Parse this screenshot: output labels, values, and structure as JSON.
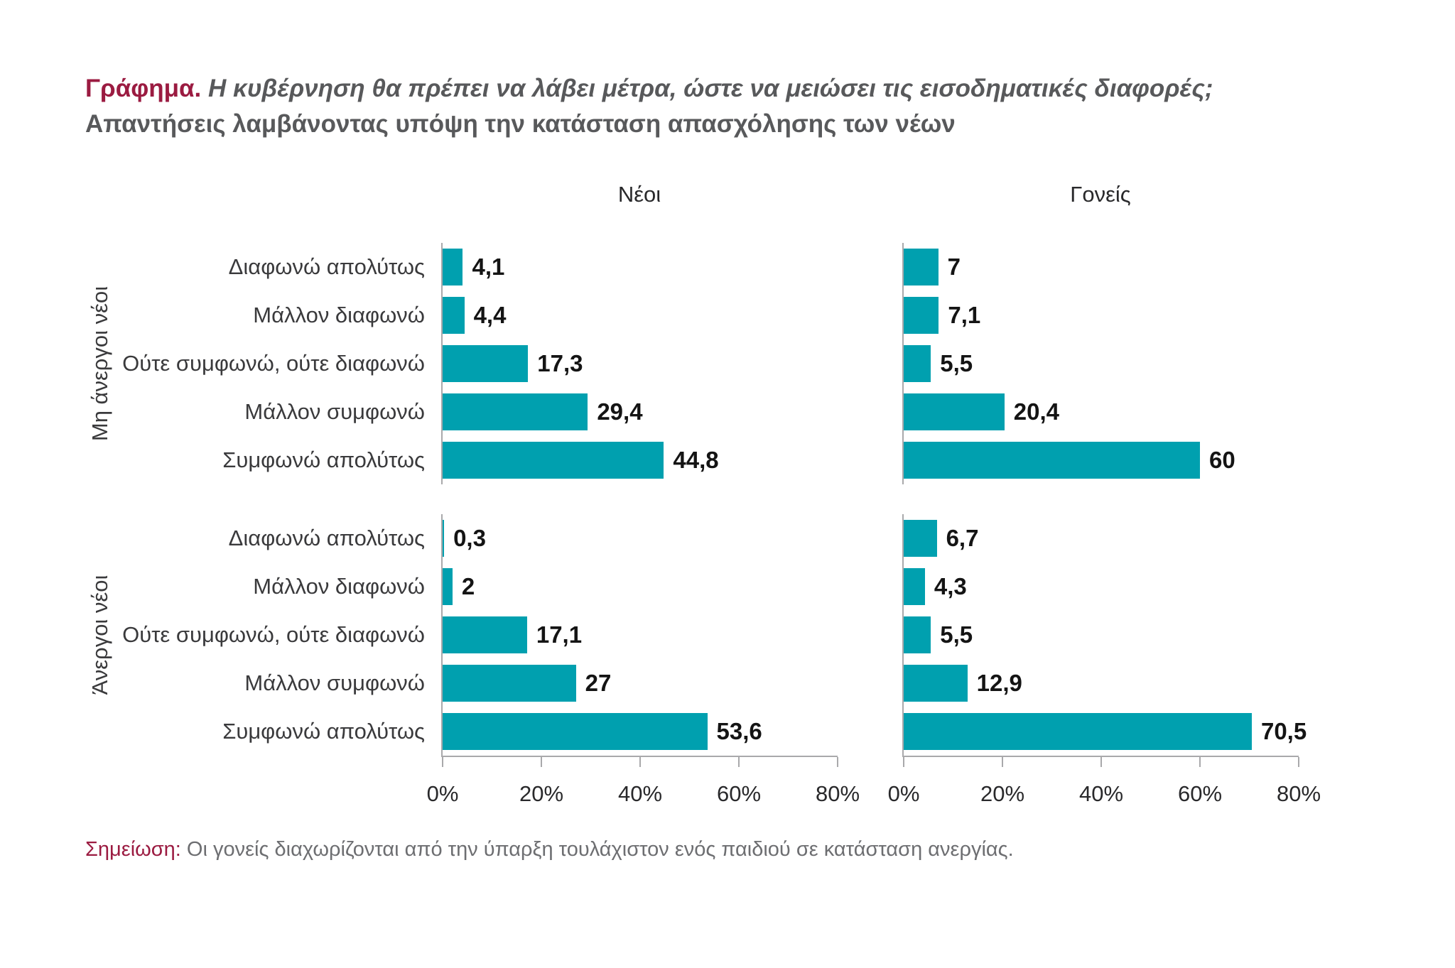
{
  "title": {
    "prefix": "Γράφημα.",
    "line1": " Η κυβέρνηση θα πρέπει να λάβει μέτρα, ώστε να μειώσει τις εισοδηματικές διαφορές;",
    "line2": "Απαντήσεις λαμβάνοντας υπόψη την κατάσταση απασχόλησης των νέων"
  },
  "note": {
    "prefix": "Σημείωση:",
    "text": " Οι γονείς διαχωρίζονται από την ύπαρξη τουλάχιστον ενός παιδιού σε κατάσταση ανεργίας."
  },
  "colors": {
    "bar": "#00A0AF",
    "accent": "#9B1B41",
    "title_gray": "#58595B",
    "axis": "#A9A9AB"
  },
  "chart_data": {
    "type": "bar",
    "orientation": "horizontal",
    "panel_headers": [
      "Νέοι",
      "Γονείς"
    ],
    "categories": [
      "Διαφωνώ απολύτως",
      "Μάλλον διαφωνώ",
      "Ούτε συμφωνώ, ούτε διαφωνώ",
      "Μάλλον συμφωνώ",
      "Συμφωνώ απολύτως"
    ],
    "x_ticks": [
      "0%",
      "20%",
      "40%",
      "60%",
      "80%"
    ],
    "xlim": [
      0,
      80
    ],
    "grid": false,
    "groups": [
      {
        "label": "Μη άνεργοι νέοι",
        "neoi": {
          "values": [
            4.1,
            4.4,
            17.3,
            29.4,
            44.8
          ],
          "labels": [
            "4,1",
            "4,4",
            "17,3",
            "29,4",
            "44,8"
          ]
        },
        "goneis": {
          "values": [
            7,
            7.1,
            5.5,
            20.4,
            60
          ],
          "labels": [
            "7",
            "7,1",
            "5,5",
            "20,4",
            "60"
          ]
        }
      },
      {
        "label": "Άνεργοι νέοι",
        "neoi": {
          "values": [
            0.3,
            2,
            17.1,
            27,
            53.6
          ],
          "labels": [
            "0,3",
            "2",
            "17,1",
            "27",
            "53,6"
          ]
        },
        "goneis": {
          "values": [
            6.7,
            4.3,
            5.5,
            12.9,
            70.5
          ],
          "labels": [
            "6,7",
            "4,3",
            "5,5",
            "12,9",
            "70,5"
          ]
        }
      }
    ]
  }
}
